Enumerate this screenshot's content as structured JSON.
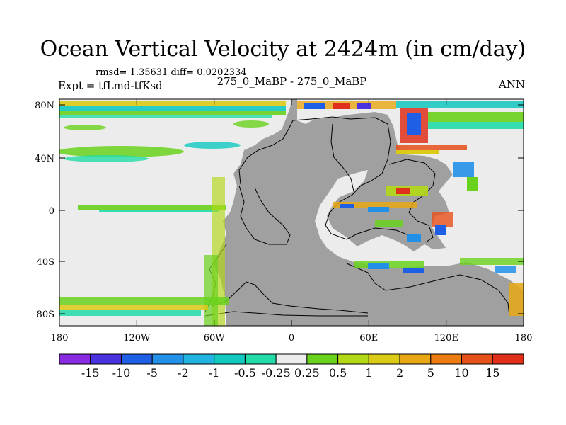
{
  "header": {
    "title": "Ocean Vertical Velocity at 2424m (in cm/day)",
    "stats": "rmsd= 1.35631 diff= 0.0202334",
    "expt": "Expt = tfLmd-tfKsd",
    "experiment_names": "275_0_MaBP - 275_0_MaBP",
    "season": "ANN"
  },
  "axes": {
    "x_ticks": [
      "180",
      "120W",
      "60W",
      "0",
      "60E",
      "120E",
      "180"
    ],
    "y_ticks": [
      "80N",
      "40N",
      "0",
      "40S",
      "80S"
    ]
  },
  "colorbar": {
    "labels": [
      "-15",
      "-10",
      "-5",
      "-2",
      "-1",
      "-0.5",
      "-0.25",
      "0.25",
      "0.5",
      "1",
      "2",
      "5",
      "10",
      "15"
    ],
    "colors": [
      "#8a2be2",
      "#4a32e0",
      "#1e5fe6",
      "#2390e8",
      "#21b4e0",
      "#12c9c0",
      "#22dca8",
      "#ececec",
      "#6ad21c",
      "#b2d816",
      "#dccb16",
      "#e8a814",
      "#ec7c12",
      "#e8501a",
      "#e0301c"
    ]
  },
  "map_colors": {
    "land": "#a0a0a0",
    "ocean_near_zero": "#ececec",
    "outline": "#000000"
  }
}
